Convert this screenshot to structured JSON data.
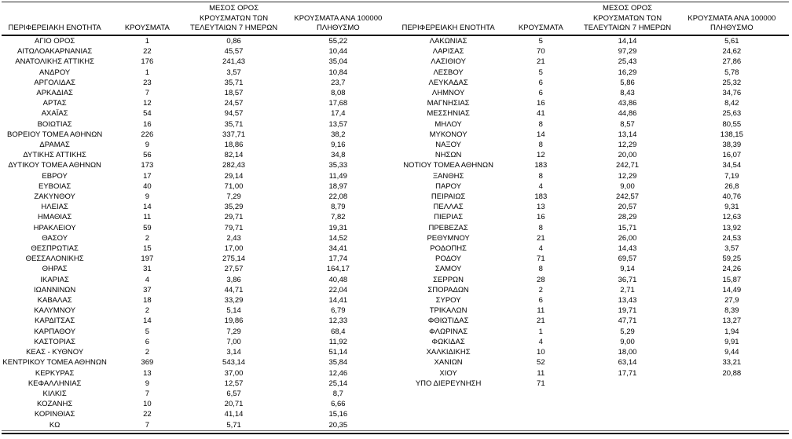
{
  "colors": {
    "text": "#000000",
    "rule": "#111111",
    "background": "#ffffff"
  },
  "table": {
    "headers": {
      "region": "ΠΕΡΙΦΕΡΕΙΑΚΗ ΕΝΟΤΗΤΑ",
      "cases": "ΚΡΟΥΣΜΑΤΑ",
      "avg7day": "ΜΕΣΟΣ ΟΡΟΣ\nΚΡΟΥΣΜΑΤΩΝ ΤΩΝ\nΤΕΛΕΥΤΑΙΩΝ 7 ΗΜΕΡΩΝ",
      "per100k": "ΚΡΟΥΣΜΑΤΑ ΑΝΑ 100000\nΠΛΗΘΥΣΜΟ"
    },
    "left_rows": [
      [
        "ΑΓΙΟ ΟΡΟΣ",
        "1",
        "0,86",
        "55,22"
      ],
      [
        "ΑΙΤΩΛΟΑΚΑΡΝΑΝΙΑΣ",
        "22",
        "45,57",
        "10,44"
      ],
      [
        "ΑΝΑΤΟΛΙΚΗΣ ΑΤΤΙΚΗΣ",
        "176",
        "241,43",
        "35,04"
      ],
      [
        "ΑΝΔΡΟΥ",
        "1",
        "3,57",
        "10,84"
      ],
      [
        "ΑΡΓΟΛΙΔΑΣ",
        "23",
        "35,71",
        "23,7"
      ],
      [
        "ΑΡΚΑΔΙΑΣ",
        "7",
        "18,57",
        "8,08"
      ],
      [
        "ΑΡΤΑΣ",
        "12",
        "24,57",
        "17,68"
      ],
      [
        "ΑΧΑΪΑΣ",
        "54",
        "94,57",
        "17,4"
      ],
      [
        "ΒΟΙΩΤΙΑΣ",
        "16",
        "35,71",
        "13,57"
      ],
      [
        "ΒΟΡΕΙΟΥ ΤΟΜΕΑ ΑΘΗΝΩΝ",
        "226",
        "337,71",
        "38,2"
      ],
      [
        "ΔΡΑΜΑΣ",
        "9",
        "18,86",
        "9,16"
      ],
      [
        "ΔΥΤΙΚΗΣ ΑΤΤΙΚΗΣ",
        "56",
        "82,14",
        "34,8"
      ],
      [
        "ΔΥΤΙΚΟΥ ΤΟΜΕΑ ΑΘΗΝΩΝ",
        "173",
        "282,43",
        "35,33"
      ],
      [
        "ΕΒΡΟΥ",
        "17",
        "29,14",
        "11,49"
      ],
      [
        "ΕΥΒΟΙΑΣ",
        "40",
        "71,00",
        "18,97"
      ],
      [
        "ΖΑΚΥΝΘΟΥ",
        "9",
        "7,29",
        "22,08"
      ],
      [
        "ΗΛΕΙΑΣ",
        "14",
        "35,29",
        "8,79"
      ],
      [
        "ΗΜΑΘΙΑΣ",
        "11",
        "29,71",
        "7,82"
      ],
      [
        "ΗΡΑΚΛΕΙΟΥ",
        "59",
        "79,71",
        "19,31"
      ],
      [
        "ΘΑΣΟΥ",
        "2",
        "2,43",
        "14,52"
      ],
      [
        "ΘΕΣΠΡΩΤΙΑΣ",
        "15",
        "17,00",
        "34,41"
      ],
      [
        "ΘΕΣΣΑΛΟΝΙΚΗΣ",
        "197",
        "275,14",
        "17,74"
      ],
      [
        "ΘΗΡΑΣ",
        "31",
        "27,57",
        "164,17"
      ],
      [
        "ΙΚΑΡΙΑΣ",
        "4",
        "3,86",
        "40,48"
      ],
      [
        "ΙΩΑΝΝΙΝΩΝ",
        "37",
        "44,71",
        "22,04"
      ],
      [
        "ΚΑΒΑΛΑΣ",
        "18",
        "33,29",
        "14,41"
      ],
      [
        "ΚΑΛΥΜΝΟΥ",
        "2",
        "5,14",
        "6,79"
      ],
      [
        "ΚΑΡΔΙΤΣΑΣ",
        "14",
        "19,86",
        "12,33"
      ],
      [
        "ΚΑΡΠΑΘΟΥ",
        "5",
        "7,29",
        "68,4"
      ],
      [
        "ΚΑΣΤΟΡΙΑΣ",
        "6",
        "7,00",
        "11,92"
      ],
      [
        "ΚΕΑΣ - ΚΥΘΝΟΥ",
        "2",
        "3,14",
        "51,14"
      ],
      [
        "ΚΕΝΤΡΙΚΟΥ ΤΟΜΕΑ ΑΘΗΝΩΝ",
        "369",
        "543,14",
        "35,84"
      ],
      [
        "ΚΕΡΚΥΡΑΣ",
        "13",
        "37,00",
        "12,46"
      ],
      [
        "ΚΕΦΑΛΛΗΝΙΑΣ",
        "9",
        "12,57",
        "25,14"
      ],
      [
        "ΚΙΛΚΙΣ",
        "7",
        "6,57",
        "8,7"
      ],
      [
        "ΚΟΖΑΝΗΣ",
        "10",
        "20,71",
        "6,66"
      ],
      [
        "ΚΟΡΙΝΘΙΑΣ",
        "22",
        "41,14",
        "15,16"
      ],
      [
        "ΚΩ",
        "7",
        "5,71",
        "20,35"
      ]
    ],
    "right_rows": [
      [
        "ΛΑΚΩΝΙΑΣ",
        "5",
        "14,14",
        "5,61"
      ],
      [
        "ΛΑΡΙΣΑΣ",
        "70",
        "97,29",
        "24,62"
      ],
      [
        "ΛΑΣΙΘΙΟΥ",
        "21",
        "25,43",
        "27,86"
      ],
      [
        "ΛΕΣΒΟΥ",
        "5",
        "16,29",
        "5,78"
      ],
      [
        "ΛΕΥΚΑΔΑΣ",
        "6",
        "5,86",
        "25,32"
      ],
      [
        "ΛΗΜΝΟΥ",
        "6",
        "8,43",
        "34,76"
      ],
      [
        "ΜΑΓΝΗΣΙΑΣ",
        "16",
        "43,86",
        "8,42"
      ],
      [
        "ΜΕΣΣΗΝΙΑΣ",
        "41",
        "44,86",
        "25,63"
      ],
      [
        "ΜΗΛΟΥ",
        "8",
        "8,57",
        "80,55"
      ],
      [
        "ΜΥΚΟΝΟΥ",
        "14",
        "13,14",
        "138,15"
      ],
      [
        "ΝΑΞΟΥ",
        "8",
        "12,29",
        "38,39"
      ],
      [
        "ΝΗΣΩΝ",
        "12",
        "20,00",
        "16,07"
      ],
      [
        "ΝΟΤΙΟΥ ΤΟΜΕΑ ΑΘΗΝΩΝ",
        "183",
        "242,71",
        "34,54"
      ],
      [
        "ΞΑΝΘΗΣ",
        "8",
        "12,29",
        "7,19"
      ],
      [
        "ΠΑΡΟΥ",
        "4",
        "9,00",
        "26,8"
      ],
      [
        "ΠΕΙΡΑΙΩΣ",
        "183",
        "242,57",
        "40,76"
      ],
      [
        "ΠΕΛΛΑΣ",
        "13",
        "20,57",
        "9,31"
      ],
      [
        "ΠΙΕΡΙΑΣ",
        "16",
        "28,29",
        "12,63"
      ],
      [
        "ΠΡΕΒΕΖΑΣ",
        "8",
        "15,71",
        "13,92"
      ],
      [
        "ΡΕΘΥΜΝΟΥ",
        "21",
        "26,00",
        "24,53"
      ],
      [
        "ΡΟΔΟΠΗΣ",
        "4",
        "14,43",
        "3,57"
      ],
      [
        "ΡΟΔΟΥ",
        "71",
        "69,57",
        "59,25"
      ],
      [
        "ΣΑΜΟΥ",
        "8",
        "9,14",
        "24,26"
      ],
      [
        "ΣΕΡΡΩΝ",
        "28",
        "36,71",
        "15,87"
      ],
      [
        "ΣΠΟΡΑΔΩΝ",
        "2",
        "2,71",
        "14,49"
      ],
      [
        "ΣΥΡΟΥ",
        "6",
        "13,43",
        "27,9"
      ],
      [
        "ΤΡΙΚΑΛΩΝ",
        "11",
        "19,71",
        "8,39"
      ],
      [
        "ΦΘΙΩΤΙΔΑΣ",
        "21",
        "47,71",
        "13,27"
      ],
      [
        "ΦΛΩΡΙΝΑΣ",
        "1",
        "5,29",
        "1,94"
      ],
      [
        "ΦΩΚΙΔΑΣ",
        "4",
        "9,00",
        "9,91"
      ],
      [
        "ΧΑΛΚΙΔΙΚΗΣ",
        "10",
        "18,00",
        "9,44"
      ],
      [
        "ΧΑΝΙΩΝ",
        "52",
        "63,14",
        "33,21"
      ],
      [
        "ΧΙΟΥ",
        "11",
        "17,71",
        "20,88"
      ],
      [
        "ΥΠΟ ΔΙΕΡΕΥΝΗΣΗ",
        "71",
        "",
        ""
      ]
    ]
  }
}
